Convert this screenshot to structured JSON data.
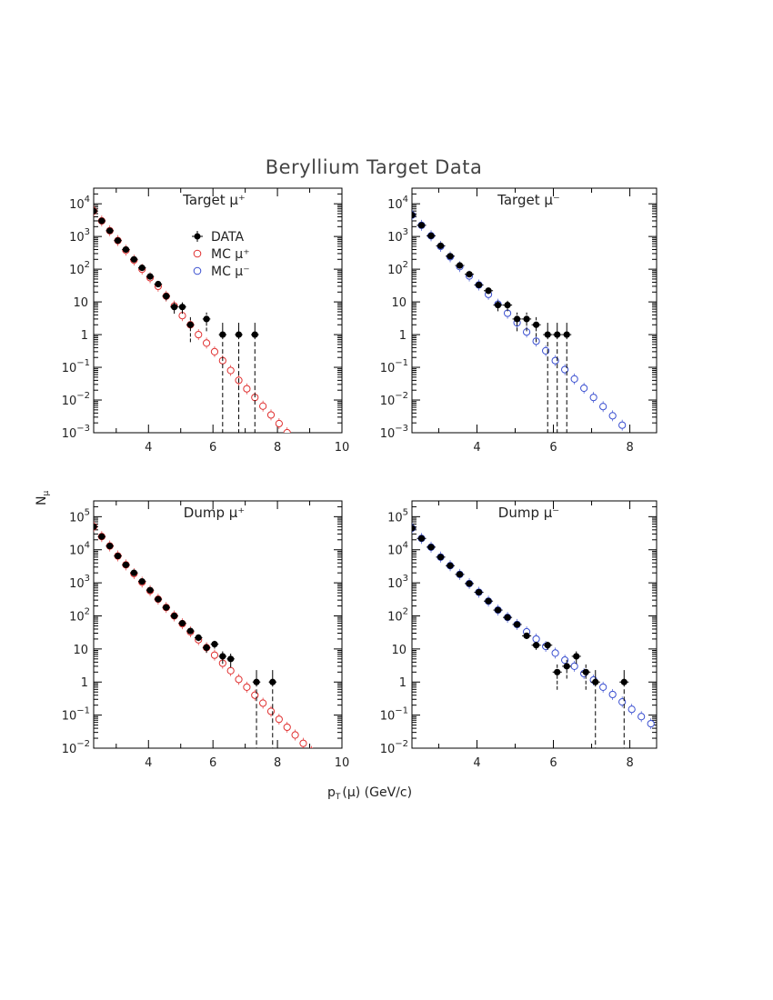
{
  "figure": {
    "title": "Beryllium Target Data",
    "xlabel_main": "p",
    "xlabel_sub": "T",
    "xlabel_rest": "(μ) (GeV/c)",
    "ylabel_main": "N",
    "ylabel_sub": "μ"
  },
  "legend": [
    {
      "label": "DATA",
      "marker": "filled-circle"
    },
    {
      "label": "MC μ⁺",
      "marker": "open-circle",
      "color": "#e03030"
    },
    {
      "label": "MC μ⁻",
      "marker": "open-circle",
      "color": "#3a4fd0"
    }
  ],
  "colors": {
    "mc_plus": "#e03030",
    "mc_minus": "#3a4fd0",
    "data": "#000000"
  },
  "chart_data": [
    {
      "type": "scatter",
      "title": "Target μ⁺",
      "log_y": true,
      "xlim": [
        2.3,
        10
      ],
      "ylim": [
        0.001,
        30000
      ],
      "x_ticks": [
        "4",
        "6",
        "8",
        "10"
      ],
      "y_ticks": [
        {
          "base": "10",
          "exp": "4"
        },
        {
          "base": "10",
          "exp": "3"
        },
        {
          "base": "10",
          "exp": "2"
        },
        {
          "base": "10",
          "exp": ""
        },
        {
          "base": "1",
          "exp": ""
        },
        {
          "base": "10",
          "exp": "−1"
        },
        {
          "base": "10",
          "exp": "−2"
        },
        {
          "base": "10",
          "exp": "−3"
        }
      ],
      "series": [
        {
          "name": "DATA",
          "x": [
            2.3,
            2.55,
            2.8,
            3.05,
            3.3,
            3.55,
            3.8,
            4.05,
            4.3,
            4.55,
            4.8,
            5.05,
            5.3,
            5.8,
            6.3,
            6.8,
            7.3
          ],
          "y": [
            6000,
            3000,
            1500,
            750,
            400,
            200,
            110,
            60,
            35,
            15,
            7,
            7,
            2,
            3,
            1,
            1,
            1
          ]
        },
        {
          "name": "MC μ⁺",
          "x": [
            2.3,
            2.55,
            2.8,
            3.05,
            3.3,
            3.55,
            3.8,
            4.05,
            4.3,
            4.55,
            4.8,
            5.05,
            5.3,
            5.55,
            5.8,
            6.05,
            6.3,
            6.55,
            6.8,
            7.05,
            7.3,
            7.55,
            7.8,
            8.05,
            8.3
          ],
          "y": [
            6000,
            3000,
            1500,
            750,
            380,
            190,
            100,
            55,
            30,
            15,
            7.5,
            3.8,
            2,
            1,
            0.55,
            0.3,
            0.16,
            0.08,
            0.04,
            0.022,
            0.012,
            0.0065,
            0.0035,
            0.0019,
            0.001
          ]
        }
      ]
    },
    {
      "type": "scatter",
      "title": "Target μ⁻",
      "log_y": true,
      "xlim": [
        2.3,
        8.7
      ],
      "ylim": [
        0.001,
        30000
      ],
      "x_ticks": [
        "4",
        "6",
        "8"
      ],
      "y_ticks": [
        {
          "base": "10",
          "exp": "4"
        },
        {
          "base": "10",
          "exp": "3"
        },
        {
          "base": "10",
          "exp": "2"
        },
        {
          "base": "10",
          "exp": ""
        },
        {
          "base": "1",
          "exp": ""
        },
        {
          "base": "10",
          "exp": "−1"
        },
        {
          "base": "10",
          "exp": "−2"
        },
        {
          "base": "10",
          "exp": "−3"
        }
      ],
      "series": [
        {
          "name": "DATA",
          "x": [
            2.3,
            2.55,
            2.8,
            3.05,
            3.3,
            3.55,
            3.8,
            4.05,
            4.3,
            4.55,
            4.8,
            5.05,
            5.3,
            5.55,
            5.85,
            6.1,
            6.35
          ],
          "y": [
            4500,
            2200,
            1050,
            520,
            250,
            130,
            70,
            33,
            22,
            8,
            8,
            3,
            3,
            2,
            1,
            1,
            1
          ]
        },
        {
          "name": "MC μ⁻",
          "x": [
            2.3,
            2.55,
            2.8,
            3.05,
            3.3,
            3.55,
            3.8,
            4.05,
            4.3,
            4.55,
            4.8,
            5.05,
            5.3,
            5.55,
            5.8,
            6.05,
            6.3,
            6.55,
            6.8,
            7.05,
            7.3,
            7.55,
            7.8
          ],
          "y": [
            4500,
            2200,
            1050,
            500,
            240,
            120,
            62,
            33,
            17,
            8.5,
            4.5,
            2.3,
            1.2,
            0.63,
            0.32,
            0.16,
            0.085,
            0.044,
            0.023,
            0.012,
            0.0063,
            0.0033,
            0.0017
          ]
        }
      ]
    },
    {
      "type": "scatter",
      "title": "Dump μ⁺",
      "log_y": true,
      "xlim": [
        2.3,
        10
      ],
      "ylim": [
        0.01,
        300000
      ],
      "x_ticks": [
        "4",
        "6",
        "8",
        "10"
      ],
      "y_ticks": [
        {
          "base": "10",
          "exp": "5"
        },
        {
          "base": "10",
          "exp": "4"
        },
        {
          "base": "10",
          "exp": "3"
        },
        {
          "base": "10",
          "exp": "2"
        },
        {
          "base": "10",
          "exp": ""
        },
        {
          "base": "1",
          "exp": ""
        },
        {
          "base": "10",
          "exp": "−1"
        },
        {
          "base": "10",
          "exp": "−2"
        }
      ],
      "series": [
        {
          "name": "DATA",
          "x": [
            2.3,
            2.55,
            2.8,
            3.05,
            3.3,
            3.55,
            3.8,
            4.05,
            4.3,
            4.55,
            4.8,
            5.05,
            5.3,
            5.55,
            5.8,
            6.05,
            6.3,
            6.55,
            7.35,
            7.85
          ],
          "y": [
            50000,
            25000,
            13000,
            6500,
            3500,
            2000,
            1100,
            600,
            320,
            180,
            100,
            60,
            35,
            22,
            11,
            14,
            6,
            5,
            1,
            1
          ]
        },
        {
          "name": "MC μ⁺",
          "x": [
            2.3,
            2.55,
            2.8,
            3.05,
            3.3,
            3.55,
            3.8,
            4.05,
            4.3,
            4.55,
            4.8,
            5.05,
            5.3,
            5.55,
            5.8,
            6.05,
            6.3,
            6.55,
            6.8,
            7.05,
            7.3,
            7.55,
            7.8,
            8.05,
            8.3,
            8.55,
            8.8,
            9.05
          ],
          "y": [
            50000,
            25000,
            13000,
            6500,
            3500,
            1900,
            1050,
            580,
            320,
            180,
            100,
            58,
            33,
            19,
            11,
            6.5,
            3.7,
            2.2,
            1.2,
            0.7,
            0.4,
            0.23,
            0.13,
            0.075,
            0.043,
            0.025,
            0.014,
            0.008
          ]
        }
      ]
    },
    {
      "type": "scatter",
      "title": "Dump μ⁻",
      "log_y": true,
      "xlim": [
        2.3,
        8.7
      ],
      "ylim": [
        0.01,
        300000
      ],
      "x_ticks": [
        "4",
        "6",
        "8"
      ],
      "y_ticks": [
        {
          "base": "10",
          "exp": "5"
        },
        {
          "base": "10",
          "exp": "4"
        },
        {
          "base": "10",
          "exp": "3"
        },
        {
          "base": "10",
          "exp": "2"
        },
        {
          "base": "10",
          "exp": ""
        },
        {
          "base": "1",
          "exp": ""
        },
        {
          "base": "10",
          "exp": "−1"
        },
        {
          "base": "10",
          "exp": "−2"
        }
      ],
      "series": [
        {
          "name": "DATA",
          "x": [
            2.3,
            2.55,
            2.8,
            3.05,
            3.3,
            3.55,
            3.8,
            4.05,
            4.3,
            4.55,
            4.8,
            5.05,
            5.3,
            5.55,
            5.85,
            6.1,
            6.35,
            6.6,
            6.85,
            7.1,
            7.85
          ],
          "y": [
            45000,
            22000,
            12000,
            6000,
            3300,
            1800,
            950,
            520,
            280,
            150,
            90,
            55,
            25,
            13,
            13,
            2,
            3,
            6,
            2,
            1,
            1
          ]
        },
        {
          "name": "MC μ⁻",
          "x": [
            2.3,
            2.55,
            2.8,
            3.05,
            3.3,
            3.55,
            3.8,
            4.05,
            4.3,
            4.55,
            4.8,
            5.05,
            5.3,
            5.55,
            5.8,
            6.05,
            6.3,
            6.55,
            6.8,
            7.05,
            7.3,
            7.55,
            7.8,
            8.05,
            8.3,
            8.55
          ],
          "y": [
            45000,
            22000,
            12000,
            6000,
            3300,
            1800,
            950,
            520,
            280,
            150,
            90,
            55,
            33,
            20,
            12,
            7.5,
            4.6,
            3,
            1.8,
            1.15,
            0.7,
            0.42,
            0.25,
            0.15,
            0.09,
            0.055
          ]
        }
      ]
    }
  ]
}
